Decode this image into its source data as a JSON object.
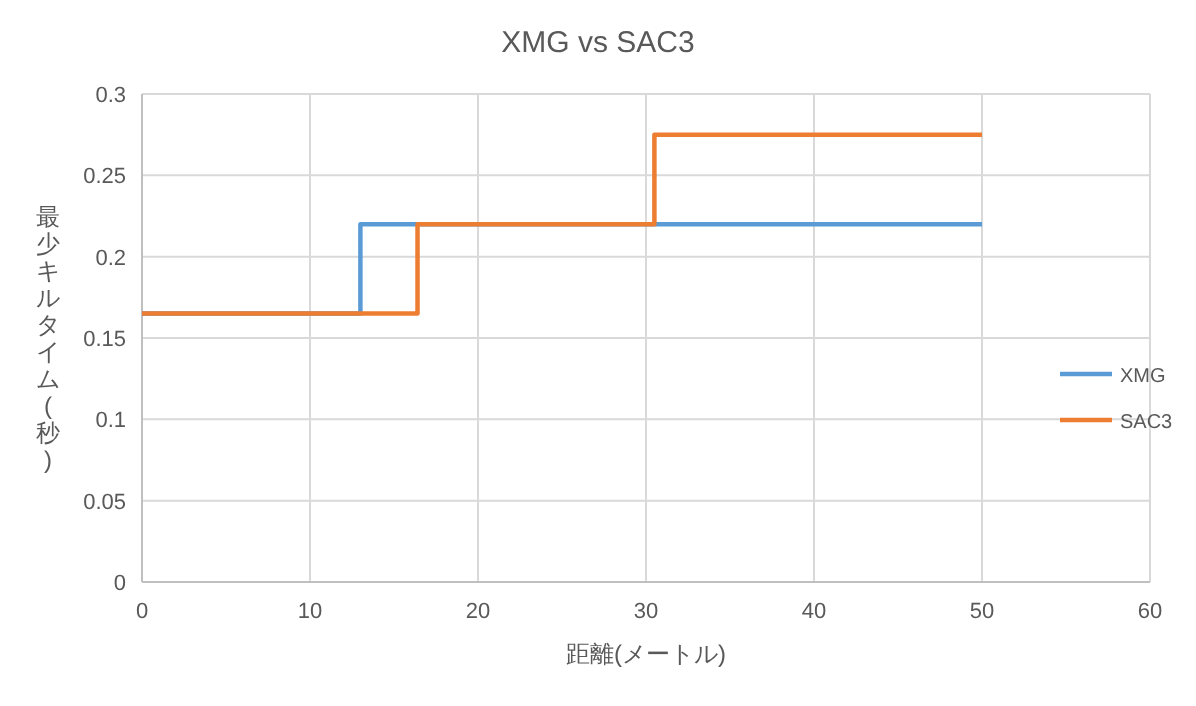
{
  "chart_data": {
    "type": "step",
    "title": "XMG vs SAC3",
    "xlabel": "距離(メートル)",
    "ylabel": "最少キルタイム(秒)",
    "xlim": [
      0,
      60
    ],
    "xticks": [
      0,
      10,
      20,
      30,
      40,
      50,
      60
    ],
    "ylim": [
      0,
      0.3
    ],
    "yticks": [
      0,
      0.05,
      0.1,
      0.15,
      0.2,
      0.25,
      0.3
    ],
    "grid": true,
    "legend": "right",
    "marker": "none",
    "line_style": "solid",
    "series": [
      {
        "name": "XMG",
        "color": "#5b9bd5",
        "x": [
          0,
          13,
          50
        ],
        "values": [
          0.165,
          0.22,
          0.22
        ]
      },
      {
        "name": "SAC3",
        "color": "#ed7d31",
        "x": [
          0,
          16.4,
          30.5,
          50
        ],
        "values": [
          0.165,
          0.22,
          0.275,
          0.275
        ]
      }
    ]
  }
}
